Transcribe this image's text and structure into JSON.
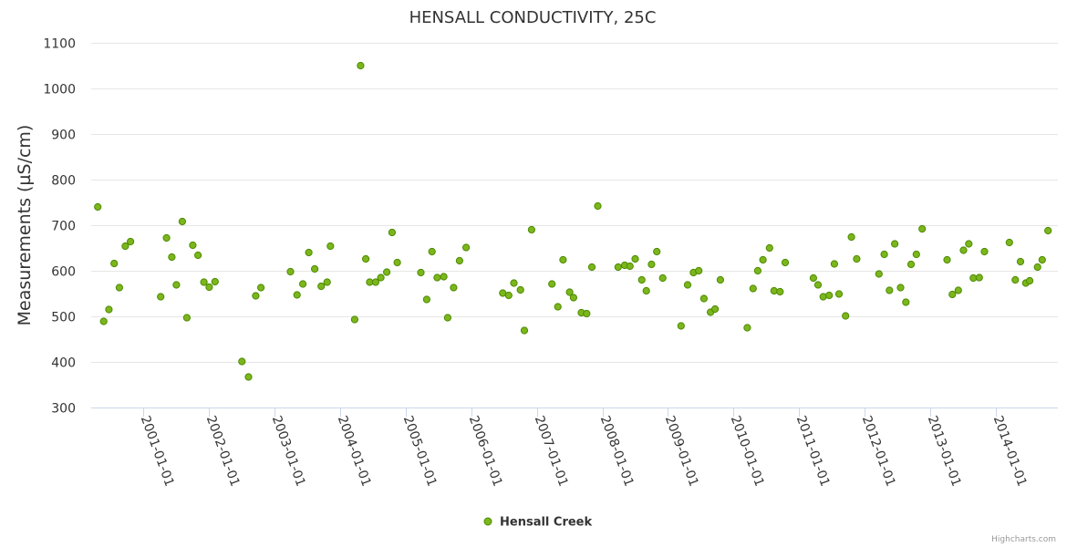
{
  "chart_data": {
    "type": "scatter",
    "title": "HENSALL CONDUCTIVITY, 25C",
    "xlabel": "",
    "ylabel": "Measurements (µS/cm)",
    "ylim": [
      300,
      1100
    ],
    "yticks": [
      300,
      400,
      500,
      600,
      700,
      800,
      900,
      1000,
      1100
    ],
    "xlim": [
      2000.2,
      2014.95
    ],
    "xticks": [
      "2001-01-01",
      "2002-01-01",
      "2003-01-01",
      "2004-01-01",
      "2005-01-01",
      "2006-01-01",
      "2007-01-01",
      "2008-01-01",
      "2009-01-01",
      "2010-01-01",
      "2011-01-01",
      "2012-01-01",
      "2013-01-01",
      "2014-01-01"
    ],
    "xtick_years": [
      2001,
      2002,
      2003,
      2004,
      2005,
      2006,
      2007,
      2008,
      2009,
      2010,
      2011,
      2012,
      2013,
      2014
    ],
    "grid": true,
    "legend_position": "bottom-center",
    "series": [
      {
        "name": "Hensall Creek",
        "color": "#7cb61c",
        "edge_color": "#4a8a00",
        "points": [
          [
            2000.3,
            740
          ],
          [
            2000.39,
            489
          ],
          [
            2000.47,
            515
          ],
          [
            2000.55,
            616
          ],
          [
            2000.63,
            563
          ],
          [
            2000.72,
            654
          ],
          [
            2000.8,
            664
          ],
          [
            2001.26,
            543
          ],
          [
            2001.35,
            672
          ],
          [
            2001.43,
            630
          ],
          [
            2001.5,
            569
          ],
          [
            2001.59,
            708
          ],
          [
            2001.66,
            497
          ],
          [
            2001.75,
            656
          ],
          [
            2001.83,
            634
          ],
          [
            2001.92,
            575
          ],
          [
            2002.0,
            564
          ],
          [
            2002.09,
            576
          ],
          [
            2002.5,
            401
          ],
          [
            2002.6,
            367
          ],
          [
            2002.71,
            545
          ],
          [
            2002.79,
            563
          ],
          [
            2003.24,
            598
          ],
          [
            2003.34,
            547
          ],
          [
            2003.43,
            571
          ],
          [
            2003.52,
            640
          ],
          [
            2003.61,
            604
          ],
          [
            2003.71,
            566
          ],
          [
            2003.8,
            575
          ],
          [
            2003.85,
            654
          ],
          [
            2004.22,
            493
          ],
          [
            2004.31,
            1050
          ],
          [
            2004.39,
            626
          ],
          [
            2004.45,
            575
          ],
          [
            2004.54,
            575
          ],
          [
            2004.62,
            585
          ],
          [
            2004.71,
            597
          ],
          [
            2004.79,
            684
          ],
          [
            2004.87,
            618
          ],
          [
            2005.23,
            596
          ],
          [
            2005.32,
            537
          ],
          [
            2005.4,
            642
          ],
          [
            2005.48,
            585
          ],
          [
            2005.58,
            587
          ],
          [
            2005.64,
            497
          ],
          [
            2005.73,
            563
          ],
          [
            2005.82,
            622
          ],
          [
            2005.92,
            651
          ],
          [
            2006.48,
            551
          ],
          [
            2006.57,
            546
          ],
          [
            2006.65,
            573
          ],
          [
            2006.75,
            558
          ],
          [
            2006.81,
            469
          ],
          [
            2006.92,
            690
          ],
          [
            2007.23,
            571
          ],
          [
            2007.32,
            521
          ],
          [
            2007.4,
            624
          ],
          [
            2007.5,
            553
          ],
          [
            2007.56,
            541
          ],
          [
            2007.68,
            508
          ],
          [
            2007.76,
            506
          ],
          [
            2007.84,
            608
          ],
          [
            2007.93,
            742
          ],
          [
            2008.24,
            608
          ],
          [
            2008.34,
            612
          ],
          [
            2008.42,
            610
          ],
          [
            2008.5,
            626
          ],
          [
            2008.6,
            580
          ],
          [
            2008.67,
            556
          ],
          [
            2008.75,
            614
          ],
          [
            2008.83,
            642
          ],
          [
            2008.92,
            584
          ],
          [
            2009.2,
            479
          ],
          [
            2009.3,
            569
          ],
          [
            2009.39,
            596
          ],
          [
            2009.47,
            600
          ],
          [
            2009.55,
            539
          ],
          [
            2009.65,
            509
          ],
          [
            2009.72,
            516
          ],
          [
            2009.8,
            580
          ],
          [
            2010.21,
            475
          ],
          [
            2010.3,
            561
          ],
          [
            2010.37,
            600
          ],
          [
            2010.45,
            624
          ],
          [
            2010.55,
            650
          ],
          [
            2010.62,
            556
          ],
          [
            2010.71,
            554
          ],
          [
            2010.79,
            618
          ],
          [
            2011.22,
            584
          ],
          [
            2011.29,
            569
          ],
          [
            2011.37,
            543
          ],
          [
            2011.46,
            546
          ],
          [
            2011.54,
            615
          ],
          [
            2011.61,
            549
          ],
          [
            2011.71,
            501
          ],
          [
            2011.8,
            674
          ],
          [
            2011.88,
            626
          ],
          [
            2012.22,
            593
          ],
          [
            2012.3,
            636
          ],
          [
            2012.38,
            557
          ],
          [
            2012.46,
            659
          ],
          [
            2012.55,
            563
          ],
          [
            2012.63,
            531
          ],
          [
            2012.71,
            614
          ],
          [
            2012.79,
            636
          ],
          [
            2012.88,
            692
          ],
          [
            2013.26,
            624
          ],
          [
            2013.34,
            548
          ],
          [
            2013.43,
            557
          ],
          [
            2013.51,
            645
          ],
          [
            2013.59,
            659
          ],
          [
            2013.66,
            584
          ],
          [
            2013.75,
            585
          ],
          [
            2013.83,
            642
          ],
          [
            2014.21,
            662
          ],
          [
            2014.3,
            580
          ],
          [
            2014.38,
            620
          ],
          [
            2014.46,
            573
          ],
          [
            2014.52,
            578
          ],
          [
            2014.64,
            608
          ],
          [
            2014.71,
            624
          ],
          [
            2014.8,
            688
          ]
        ]
      }
    ]
  },
  "credit": "Highcharts.com"
}
